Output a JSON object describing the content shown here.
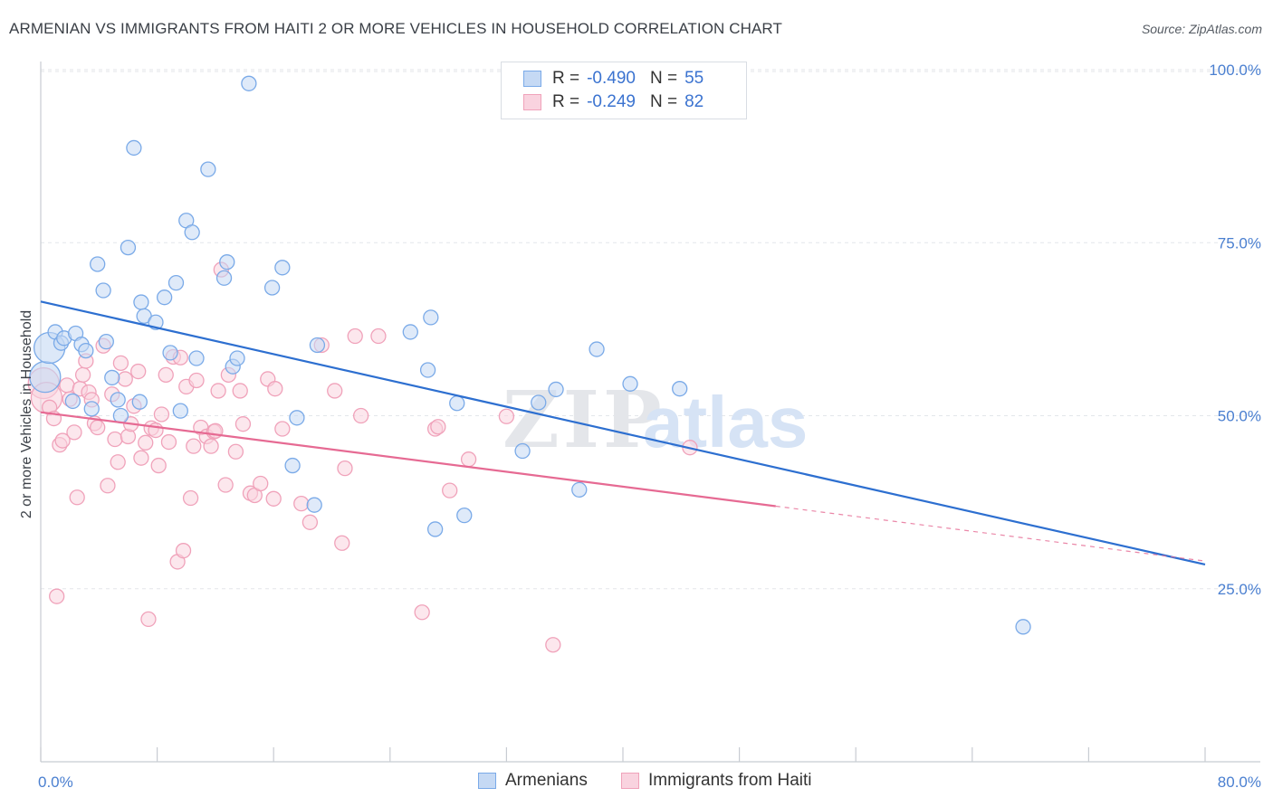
{
  "title": "ARMENIAN VS IMMIGRANTS FROM HAITI 2 OR MORE VEHICLES IN HOUSEHOLD CORRELATION CHART",
  "source": "Source: ZipAtlas.com",
  "watermark": {
    "zip": "ZIP",
    "atlas": "atlas"
  },
  "legend": {
    "r_label": "R =",
    "n_label": "N =",
    "rows": [
      {
        "r": "-0.490",
        "n": "55"
      },
      {
        "r": "-0.249",
        "n": "82"
      }
    ]
  },
  "chart_data": {
    "type": "scatter",
    "ylabel": "2 or more Vehicles in Household",
    "xlabel": "",
    "xlim": [
      0,
      80
    ],
    "ylim": [
      0,
      105
    ],
    "x_ticks": [
      "0.0%",
      "80.0%"
    ],
    "y_ticks": [
      {
        "value": 100,
        "label": "100.0%"
      },
      {
        "value": 75,
        "label": "75.0%"
      },
      {
        "value": 50,
        "label": "50.0%"
      },
      {
        "value": 25,
        "label": "25.0%"
      }
    ],
    "grid": true,
    "series": [
      {
        "name": "Armenians",
        "color": "#7aaae8",
        "fill": "#c5d9f4",
        "line_color": "#2d6fd0",
        "trend": {
          "x0": 0,
          "y0": 66.5,
          "x1": 80,
          "y1": 28.5,
          "solid_until": 80
        },
        "points": [
          [
            0.3,
            55.6
          ],
          [
            0.6,
            59.8
          ],
          [
            1.0,
            62.1
          ],
          [
            1.4,
            60.5
          ],
          [
            1.6,
            61.2
          ],
          [
            2.2,
            52.1
          ],
          [
            2.4,
            61.9
          ],
          [
            2.8,
            60.3
          ],
          [
            3.1,
            59.4
          ],
          [
            3.5,
            51.0
          ],
          [
            3.9,
            71.9
          ],
          [
            4.3,
            68.1
          ],
          [
            4.5,
            60.7
          ],
          [
            4.9,
            55.5
          ],
          [
            5.3,
            52.3
          ],
          [
            5.5,
            50.0
          ],
          [
            6.0,
            74.3
          ],
          [
            6.4,
            88.7
          ],
          [
            6.8,
            52.0
          ],
          [
            6.9,
            66.4
          ],
          [
            7.1,
            64.4
          ],
          [
            7.9,
            63.5
          ],
          [
            8.5,
            67.1
          ],
          [
            8.9,
            59.1
          ],
          [
            9.3,
            69.2
          ],
          [
            9.6,
            50.7
          ],
          [
            10.0,
            78.2
          ],
          [
            10.4,
            76.5
          ],
          [
            10.7,
            58.3
          ],
          [
            11.5,
            85.6
          ],
          [
            12.6,
            69.9
          ],
          [
            12.8,
            72.2
          ],
          [
            13.2,
            57.1
          ],
          [
            13.5,
            58.3
          ],
          [
            14.3,
            98.0
          ],
          [
            15.9,
            68.5
          ],
          [
            16.6,
            71.4
          ],
          [
            17.3,
            42.8
          ],
          [
            17.6,
            49.7
          ],
          [
            18.8,
            37.1
          ],
          [
            19.0,
            60.2
          ],
          [
            25.4,
            62.1
          ],
          [
            26.6,
            56.6
          ],
          [
            26.8,
            64.2
          ],
          [
            27.1,
            33.6
          ],
          [
            28.6,
            51.8
          ],
          [
            29.1,
            35.6
          ],
          [
            33.1,
            44.9
          ],
          [
            34.2,
            51.9
          ],
          [
            35.4,
            53.8
          ],
          [
            37.0,
            39.3
          ],
          [
            38.2,
            59.6
          ],
          [
            40.5,
            54.6
          ],
          [
            43.9,
            53.9
          ],
          [
            67.5,
            19.5
          ]
        ]
      },
      {
        "name": "Immigrants from Haiti",
        "color": "#f0a2ba",
        "fill": "#f9d3df",
        "line_color": "#e66a93",
        "trend": {
          "x0": 0,
          "y0": 50.5,
          "x1": 80,
          "y1": 29.0,
          "solid_until": 50.5
        },
        "points": [
          [
            0.2,
            54.7
          ],
          [
            0.4,
            52.6
          ],
          [
            0.6,
            51.2
          ],
          [
            0.9,
            49.6
          ],
          [
            1.1,
            23.9
          ],
          [
            1.3,
            45.8
          ],
          [
            1.5,
            46.4
          ],
          [
            1.8,
            54.4
          ],
          [
            2.0,
            52.4
          ],
          [
            2.3,
            47.6
          ],
          [
            2.5,
            38.2
          ],
          [
            2.7,
            53.9
          ],
          [
            2.9,
            55.9
          ],
          [
            3.1,
            57.9
          ],
          [
            3.3,
            53.4
          ],
          [
            3.5,
            52.3
          ],
          [
            3.7,
            48.9
          ],
          [
            3.9,
            48.3
          ],
          [
            4.3,
            60.1
          ],
          [
            4.6,
            39.9
          ],
          [
            4.9,
            53.1
          ],
          [
            5.1,
            46.6
          ],
          [
            5.3,
            43.3
          ],
          [
            5.5,
            57.6
          ],
          [
            5.8,
            55.3
          ],
          [
            6.0,
            47.0
          ],
          [
            6.2,
            48.8
          ],
          [
            6.4,
            51.4
          ],
          [
            6.7,
            56.4
          ],
          [
            6.9,
            43.9
          ],
          [
            7.2,
            46.1
          ],
          [
            7.4,
            20.6
          ],
          [
            7.6,
            48.2
          ],
          [
            7.9,
            47.9
          ],
          [
            8.1,
            42.8
          ],
          [
            8.3,
            50.2
          ],
          [
            8.6,
            55.9
          ],
          [
            8.8,
            46.2
          ],
          [
            9.1,
            58.5
          ],
          [
            9.4,
            28.9
          ],
          [
            9.6,
            58.4
          ],
          [
            9.8,
            30.5
          ],
          [
            10.0,
            54.2
          ],
          [
            10.3,
            38.1
          ],
          [
            10.5,
            45.6
          ],
          [
            10.7,
            55.1
          ],
          [
            11.0,
            48.3
          ],
          [
            11.4,
            47.0
          ],
          [
            11.7,
            45.6
          ],
          [
            11.9,
            47.7
          ],
          [
            12.2,
            53.6
          ],
          [
            12.4,
            71.1
          ],
          [
            12.7,
            40.0
          ],
          [
            12.9,
            55.9
          ],
          [
            13.4,
            44.8
          ],
          [
            13.7,
            53.6
          ],
          [
            13.9,
            48.8
          ],
          [
            14.4,
            38.8
          ],
          [
            14.7,
            38.5
          ],
          [
            15.1,
            40.2
          ],
          [
            15.6,
            55.3
          ],
          [
            16.1,
            53.9
          ],
          [
            16.6,
            48.1
          ],
          [
            17.9,
            37.3
          ],
          [
            18.5,
            34.6
          ],
          [
            19.3,
            60.2
          ],
          [
            20.2,
            53.6
          ],
          [
            20.7,
            31.6
          ],
          [
            20.9,
            42.4
          ],
          [
            21.6,
            61.5
          ],
          [
            22.0,
            50.0
          ],
          [
            26.2,
            21.6
          ],
          [
            27.1,
            48.1
          ],
          [
            27.3,
            48.4
          ],
          [
            28.1,
            39.2
          ],
          [
            29.4,
            43.7
          ],
          [
            32.0,
            49.9
          ],
          [
            35.2,
            16.9
          ],
          [
            44.6,
            45.4
          ],
          [
            16.0,
            38.0
          ],
          [
            12.0,
            47.8
          ],
          [
            23.2,
            61.5
          ]
        ]
      }
    ]
  }
}
